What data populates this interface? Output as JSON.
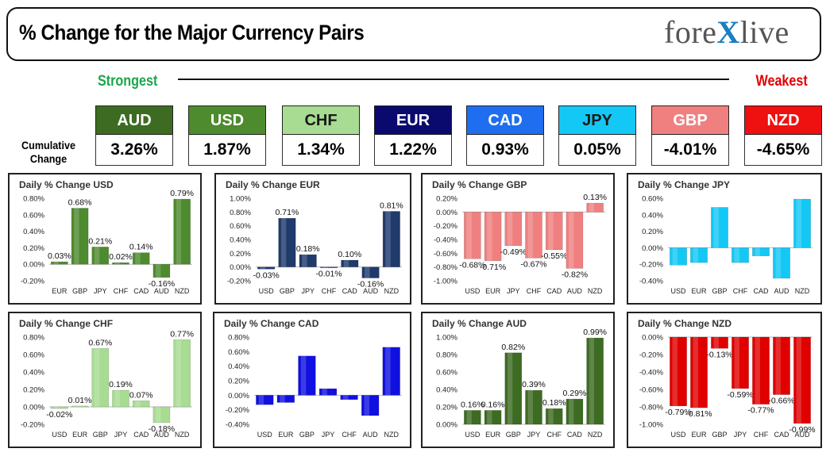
{
  "title": "% Change for the Major Currency Pairs",
  "logo": {
    "pre": "fore",
    "x": "X",
    "post": "live"
  },
  "strongest_label": "Strongest",
  "weakest_label": "Weakest",
  "cumulative_label_1": "Cumulative",
  "cumulative_label_2": "Change",
  "currencies": [
    {
      "name": "AUD",
      "value": "3.26%",
      "bg": "#3d6b22",
      "fg": "#ffffff"
    },
    {
      "name": "USD",
      "value": "1.87%",
      "bg": "#4e8a2e",
      "fg": "#ffffff"
    },
    {
      "name": "CHF",
      "value": "1.34%",
      "bg": "#a8dc93",
      "fg": "#1a1a1a"
    },
    {
      "name": "EUR",
      "value": "1.22%",
      "bg": "#0a0a6e",
      "fg": "#ffffff"
    },
    {
      "name": "CAD",
      "value": "0.93%",
      "bg": "#1f6ef0",
      "fg": "#ffffff"
    },
    {
      "name": "JPY",
      "value": "0.05%",
      "bg": "#14c8f5",
      "fg": "#1a1a1a"
    },
    {
      "name": "GBP",
      "value": "-4.01%",
      "bg": "#f08080",
      "fg": "#ffffff"
    },
    {
      "name": "NZD",
      "value": "-4.65%",
      "bg": "#ef1010",
      "fg": "#ffffff"
    }
  ],
  "chart_data": [
    {
      "type": "bar",
      "title": "Daily % Change USD",
      "categories": [
        "EUR",
        "GBP",
        "JPY",
        "CHF",
        "CAD",
        "AUD",
        "NZD"
      ],
      "values": [
        0.03,
        0.68,
        0.21,
        0.02,
        0.14,
        -0.16,
        0.79
      ],
      "labels": [
        "0.03%",
        "0.68%",
        "0.21%",
        "0.02%",
        "0.14%",
        "-0.16%",
        "0.79%"
      ],
      "ylim": [
        -0.2,
        0.8
      ],
      "yticks": [
        -0.2,
        0,
        0.2,
        0.4,
        0.6,
        0.8
      ],
      "color": "#4e8a2e"
    },
    {
      "type": "bar",
      "title": "Daily % Change EUR",
      "categories": [
        "USD",
        "GBP",
        "JPY",
        "CHF",
        "CAD",
        "AUD",
        "NZD"
      ],
      "values": [
        -0.03,
        0.71,
        0.18,
        -0.01,
        0.1,
        -0.16,
        0.81
      ],
      "labels": [
        "-0.03%",
        "0.71%",
        "0.18%",
        "-0.01%",
        "0.10%",
        "-0.16%",
        "0.81%"
      ],
      "ylim": [
        -0.2,
        1.0
      ],
      "yticks": [
        -0.2,
        0,
        0.2,
        0.4,
        0.6,
        0.8,
        1.0
      ],
      "color": "#1f3a6b"
    },
    {
      "type": "bar",
      "title": "Daily % Change GBP",
      "categories": [
        "USD",
        "EUR",
        "JPY",
        "CHF",
        "CAD",
        "AUD",
        "NZD"
      ],
      "values": [
        -0.68,
        -0.71,
        -0.49,
        -0.67,
        -0.55,
        -0.82,
        0.13
      ],
      "labels": [
        "-0.68%",
        "-0.71%",
        "-0.49%",
        "-0.67%",
        "-0.55%",
        "-0.82%",
        "0.13%"
      ],
      "ylim": [
        -1.0,
        0.2
      ],
      "yticks": [
        -1.0,
        -0.8,
        -0.6,
        -0.4,
        -0.2,
        0,
        0.2
      ],
      "color": "#f08080"
    },
    {
      "type": "bar",
      "title": "Daily % Change JPY",
      "categories": [
        "USD",
        "EUR",
        "GBP",
        "CHF",
        "CAD",
        "AUD",
        "NZD"
      ],
      "values": [
        -0.21,
        -0.18,
        0.49,
        -0.18,
        -0.1,
        -0.37,
        0.59
      ],
      "labels": [],
      "ylim": [
        -0.4,
        0.6
      ],
      "yticks": [
        -0.4,
        -0.2,
        0,
        0.2,
        0.4,
        0.6
      ],
      "color": "#14c8f5"
    },
    {
      "type": "bar",
      "title": "Daily % Change CHF",
      "categories": [
        "USD",
        "EUR",
        "GBP",
        "JPY",
        "CAD",
        "AUD",
        "NZD"
      ],
      "values": [
        -0.02,
        0.01,
        0.67,
        0.19,
        0.07,
        -0.18,
        0.77
      ],
      "labels": [
        "-0.02%",
        "0.01%",
        "0.67%",
        "0.19%",
        "0.07%",
        "-0.18%",
        "0.77%"
      ],
      "ylim": [
        -0.2,
        0.8
      ],
      "yticks": [
        -0.2,
        0,
        0.2,
        0.4,
        0.6,
        0.8
      ],
      "color": "#a8dc93"
    },
    {
      "type": "bar",
      "title": "Daily % Change CAD",
      "categories": [
        "USD",
        "EUR",
        "GBP",
        "JPY",
        "CHF",
        "AUD",
        "NZD"
      ],
      "values": [
        -0.13,
        -0.1,
        0.54,
        0.09,
        -0.06,
        -0.28,
        0.66
      ],
      "labels": [],
      "ylim": [
        -0.4,
        0.8
      ],
      "yticks": [
        -0.4,
        -0.2,
        0,
        0.2,
        0.4,
        0.6,
        0.8
      ],
      "color": "#1010e0"
    },
    {
      "type": "bar",
      "title": "Daily % Change AUD",
      "categories": [
        "USD",
        "EUR",
        "GBP",
        "JPY",
        "CHF",
        "CAD",
        "NZD"
      ],
      "values": [
        0.16,
        0.16,
        0.82,
        0.39,
        0.18,
        0.29,
        0.99
      ],
      "labels": [
        "0.16%",
        "0.16%",
        "0.82%",
        "0.39%",
        "0.18%",
        "0.29%",
        "0.99%"
      ],
      "ylim": [
        0,
        1.0
      ],
      "yticks": [
        0,
        0.2,
        0.4,
        0.6,
        0.8,
        1.0
      ],
      "color": "#3d6b22"
    },
    {
      "type": "bar",
      "title": "Daily % Change NZD",
      "categories": [
        "USD",
        "EUR",
        "GBP",
        "JPY",
        "CHF",
        "CAD",
        "AUD"
      ],
      "values": [
        -0.79,
        -0.81,
        -0.13,
        -0.59,
        -0.77,
        -0.66,
        -0.99
      ],
      "labels": [
        "-0.79%",
        "-0.81%",
        "-0.13%",
        "-0.59%",
        "-0.77%",
        "-0.66%",
        "-0.99%"
      ],
      "ylim": [
        -1.0,
        0
      ],
      "yticks": [
        -1.0,
        -0.8,
        -0.6,
        -0.4,
        -0.2,
        0
      ],
      "color": "#e00000"
    }
  ]
}
